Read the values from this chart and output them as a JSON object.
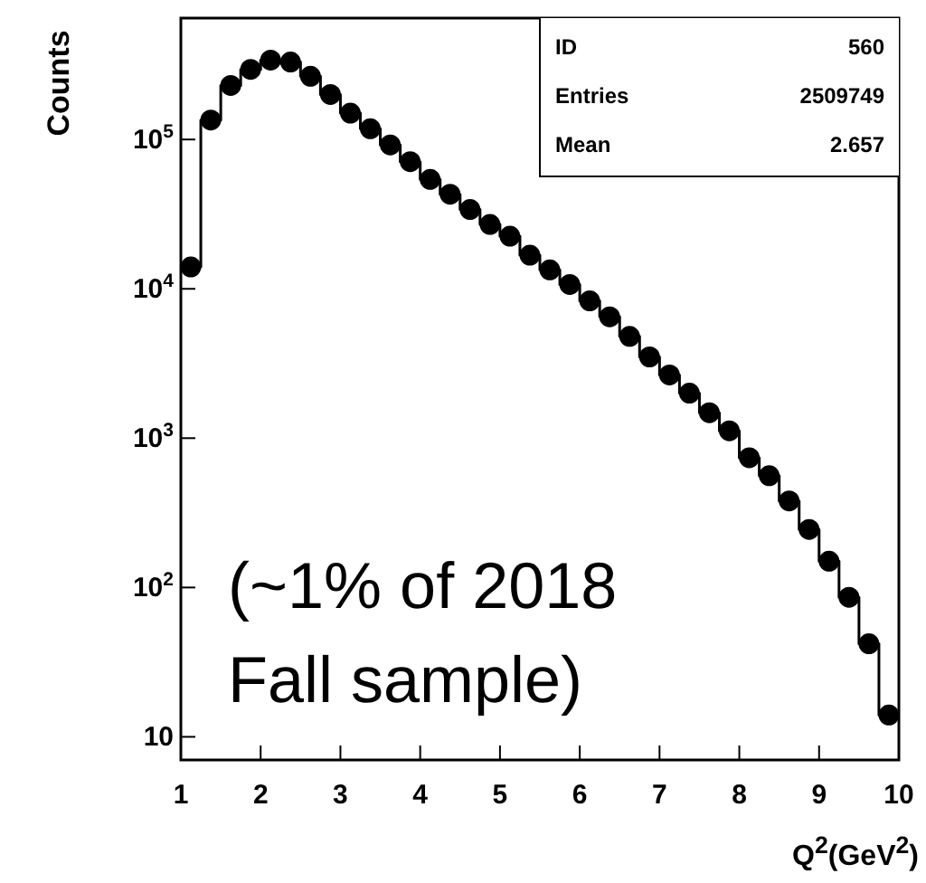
{
  "chart_data": {
    "type": "step",
    "ylabel": "Counts",
    "xlabel": "Q$^{2}$(GeV$^{2}$)",
    "x": [
      1.125,
      1.375,
      1.625,
      1.875,
      2.125,
      2.375,
      2.625,
      2.875,
      3.125,
      3.375,
      3.625,
      3.875,
      4.125,
      4.375,
      4.625,
      4.875,
      5.125,
      5.375,
      5.625,
      5.875,
      6.125,
      6.375,
      6.625,
      6.875,
      7.125,
      7.375,
      7.625,
      7.875,
      8.125,
      8.375,
      8.625,
      8.875,
      9.125,
      9.375,
      9.625,
      9.875
    ],
    "values": [
      14000,
      135000,
      230000,
      295000,
      340000,
      330000,
      265000,
      200000,
      150000,
      118000,
      92000,
      71000,
      54000,
      43000,
      34000,
      27000,
      22500,
      16800,
      13400,
      10700,
      8300,
      6500,
      4800,
      3500,
      2650,
      2000,
      1480,
      1120,
      740,
      560,
      380,
      245,
      150,
      86,
      42,
      14
    ],
    "color": "#000000",
    "marker": "circle",
    "log": "y",
    "xlim": [
      1,
      10
    ],
    "xticks": [
      1,
      2,
      3,
      4,
      5,
      6,
      7,
      8,
      9,
      10
    ],
    "ylim": [
      7,
      650000
    ],
    "yticks": [
      10,
      {
        "value": 100,
        "label": "10$^{2}$"
      },
      {
        "value": 1000,
        "label": "10$^{3}$"
      },
      {
        "value": 10000,
        "label": "10$^{4}$"
      },
      {
        "value": 100000,
        "label": "10$^{5}$"
      }
    ],
    "annotations": [
      "(~1% of 2018 Fall sample)",
      "ID",
      "560",
      "Entries",
      "2509749",
      "Mean",
      "2.657"
    ]
  }
}
